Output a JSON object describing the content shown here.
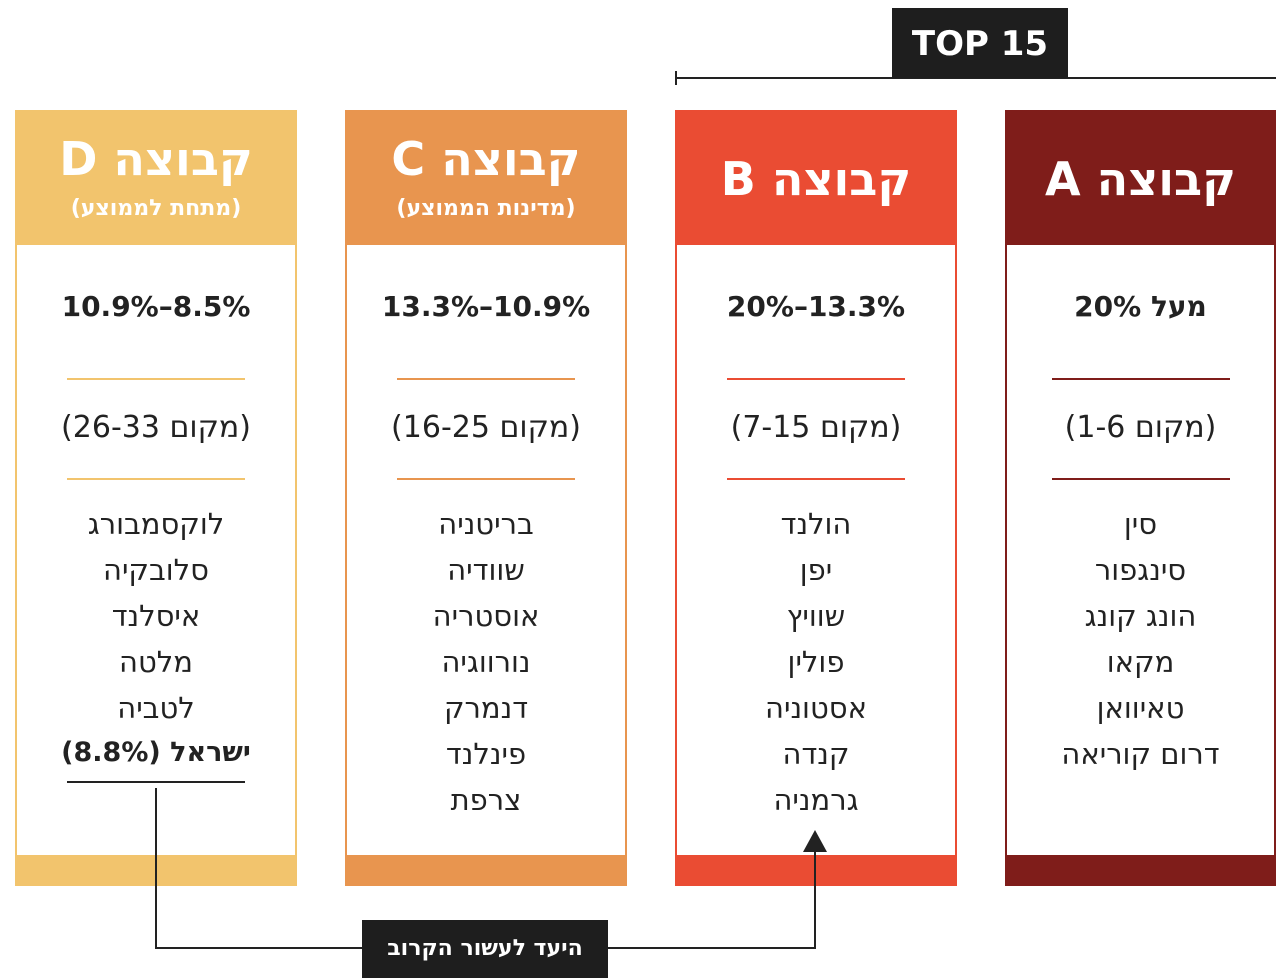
{
  "top_label": "TOP 15",
  "goal_label": "היעד לעשור הקרוב",
  "groups": [
    {
      "title": "קבוצה A",
      "range": "מעל 20%",
      "rank": "(מקום 1-6)",
      "color": "#7f1d1a",
      "countries": [
        "סין",
        "סינגפור",
        "הונג קונג",
        "מקאו",
        "טאיוואן",
        "דרום קוריאה"
      ]
    },
    {
      "title": "קבוצה B",
      "range": "13.3%–20%",
      "rank": "(מקום 7-15)",
      "color": "#ea4c33",
      "countries": [
        "הולנד",
        "יפן",
        "שוויץ",
        "פולין",
        "אסטוניה",
        "קנדה",
        "גרמניה"
      ]
    },
    {
      "title": "קבוצה C",
      "subtitle": "(מדינות הממוצע)",
      "range": "10.9%–13.3%",
      "rank": "(מקום 16-25)",
      "color": "#e8954f",
      "countries": [
        "בריטניה",
        "שוודיה",
        "אוסטריה",
        "נורווגיה",
        "דנמרק",
        "פינלנד",
        "צרפת"
      ]
    },
    {
      "title": "קבוצה D",
      "subtitle": "(מתחת לממוצע)",
      "range": "8.5%–10.9%",
      "rank": "(מקום 26-33)",
      "color": "#f2c46d",
      "countries": [
        "לוקסמבורג",
        "סלובקיה",
        "איסלנד",
        "מלטה",
        "לטביה"
      ],
      "highlighted_country": "ישראל (8.8%)"
    }
  ]
}
